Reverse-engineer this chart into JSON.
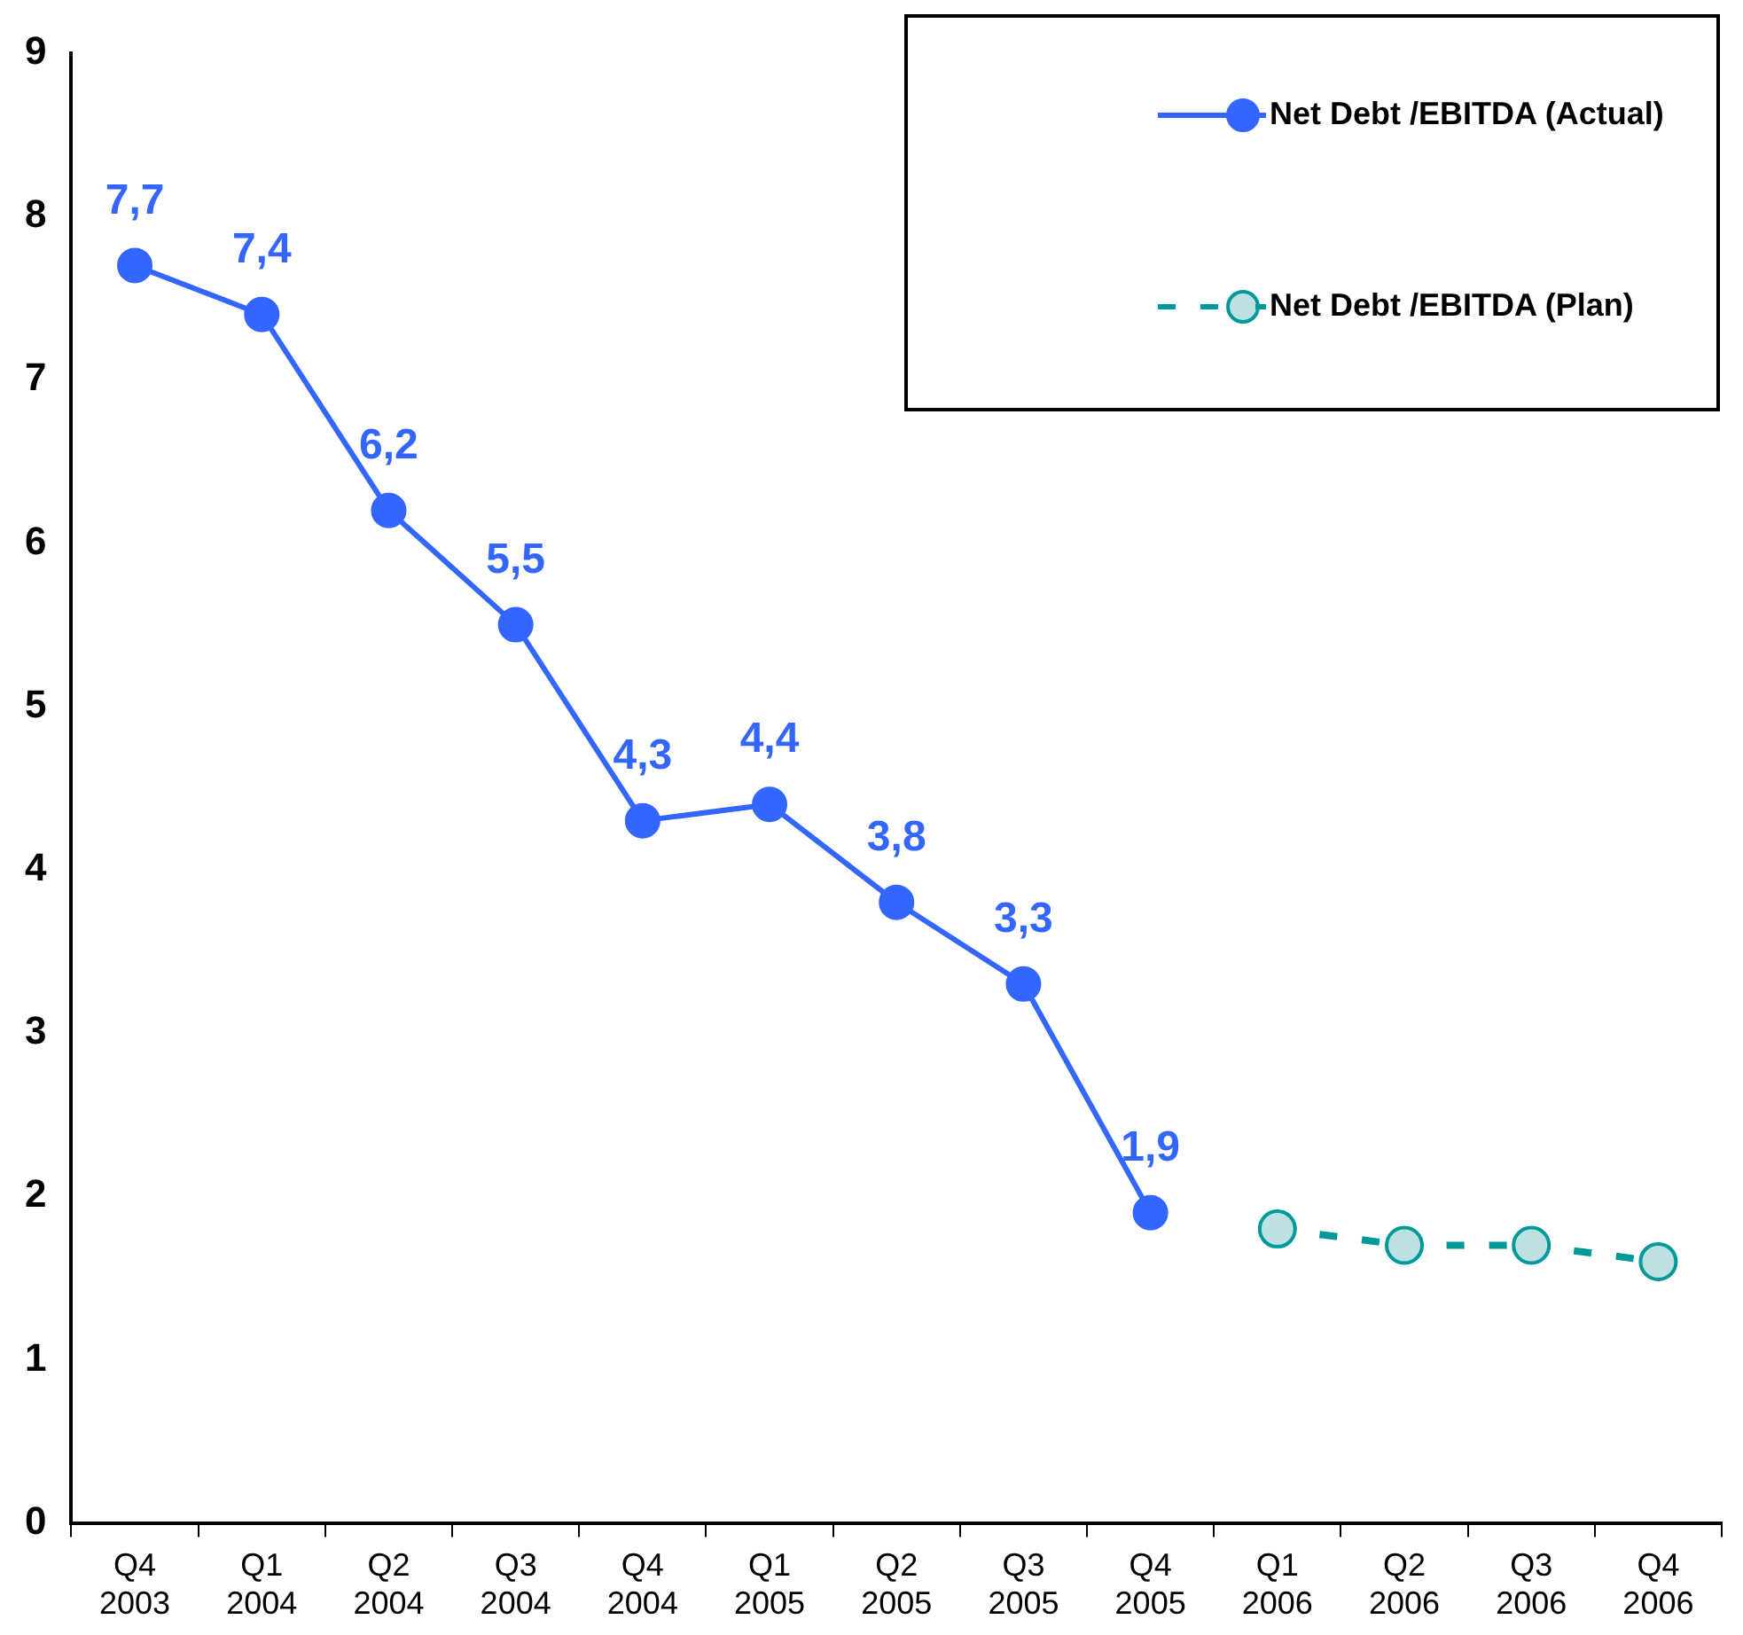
{
  "chart_data": {
    "type": "line",
    "categories": [
      "Q4\n2003",
      "Q1\n2004",
      "Q2\n2004",
      "Q3\n2004",
      "Q4\n2004",
      "Q1\n2005",
      "Q2\n2005",
      "Q3\n2005",
      "Q4\n2005",
      "Q1\n2006",
      "Q2\n2006",
      "Q3\n2006",
      "Q4\n2006"
    ],
    "series": [
      {
        "name": "Net Debt /EBITDA (Actual)",
        "color": "#3366ff",
        "values": [
          7.7,
          7.4,
          6.2,
          5.5,
          4.3,
          4.4,
          3.8,
          3.3,
          1.9,
          null,
          null,
          null,
          null
        ],
        "value_labels": [
          "7,7",
          "7,4",
          "6,2",
          "5,5",
          "4,3",
          "4,4",
          "3,8",
          "3,3",
          "1,9",
          null,
          null,
          null,
          null
        ],
        "marker": "circle",
        "line_style": "solid"
      },
      {
        "name": "Net Debt /EBITDA (Plan)",
        "color": "#009999",
        "values": [
          null,
          null,
          null,
          null,
          null,
          null,
          null,
          null,
          null,
          1.8,
          1.7,
          1.7,
          1.6
        ],
        "marker": "circle",
        "line_style": "dashed"
      }
    ],
    "ylim": [
      0,
      9
    ],
    "yticks": [
      0,
      1,
      2,
      3,
      4,
      5,
      6,
      7,
      8,
      9
    ],
    "grid": false,
    "legend": "top right"
  }
}
